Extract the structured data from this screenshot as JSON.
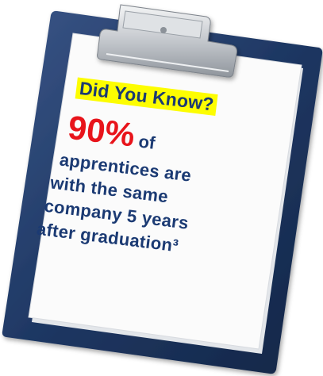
{
  "note": {
    "headline": "Did You Know?",
    "stat_value": "90%",
    "stat_suffix": "of",
    "lines": [
      "apprentices are",
      "with the same",
      "company 5 years",
      "after graduation³"
    ]
  },
  "colors": {
    "clipboard": "#1e3763",
    "clip": "#c9cdd2",
    "highlight": "#fdfd00",
    "stat": "#e8141b",
    "text": "#1b3a73"
  }
}
